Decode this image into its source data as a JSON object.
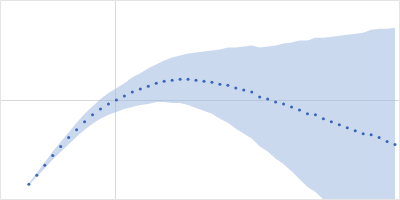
{
  "chart_data": {
    "type": "scatter",
    "color": "#3a66b8",
    "marker": "circle",
    "grid": true,
    "tick_labels": false,
    "xlim": [
      0,
      0.4
    ],
    "ylim": [
      0,
      2
    ],
    "xticks": [
      0.115
    ],
    "yticks": [
      1
    ],
    "x": [
      0.028,
      0.036,
      0.044,
      0.052,
      0.06,
      0.068,
      0.076,
      0.084,
      0.092,
      0.1,
      0.108,
      0.116,
      0.124,
      0.132,
      0.14,
      0.148,
      0.156,
      0.164,
      0.172,
      0.18,
      0.188,
      0.196,
      0.204,
      0.212,
      0.22,
      0.228,
      0.236,
      0.244,
      0.252,
      0.26,
      0.268,
      0.276,
      0.284,
      0.292,
      0.3,
      0.308,
      0.316,
      0.324,
      0.332,
      0.34,
      0.348,
      0.356,
      0.364,
      0.372,
      0.38,
      0.388,
      0.396
    ],
    "values": [
      0.15,
      0.24,
      0.34,
      0.44,
      0.53,
      0.62,
      0.7,
      0.78,
      0.85,
      0.91,
      0.96,
      1.0,
      1.04,
      1.08,
      1.11,
      1.14,
      1.17,
      1.19,
      1.2,
      1.21,
      1.21,
      1.2,
      1.19,
      1.18,
      1.16,
      1.15,
      1.12,
      1.1,
      1.08,
      1.03,
      1.01,
      0.98,
      0.96,
      0.93,
      0.9,
      0.86,
      0.85,
      0.81,
      0.78,
      0.75,
      0.72,
      0.69,
      0.66,
      0.65,
      0.62,
      0.58,
      0.55
    ],
    "errors": [
      0.01,
      0.02,
      0.03,
      0.04,
      0.05,
      0.06,
      0.07,
      0.08,
      0.09,
      0.1,
      0.11,
      0.12,
      0.13,
      0.15,
      0.16,
      0.18,
      0.19,
      0.21,
      0.23,
      0.24,
      0.26,
      0.28,
      0.3,
      0.32,
      0.35,
      0.38,
      0.41,
      0.44,
      0.47,
      0.5,
      0.53,
      0.57,
      0.61,
      0.65,
      0.7,
      0.74,
      0.78,
      0.82,
      0.86,
      0.9,
      0.94,
      0.98,
      1.02,
      1.06,
      1.1,
      1.14,
      1.18
    ]
  }
}
